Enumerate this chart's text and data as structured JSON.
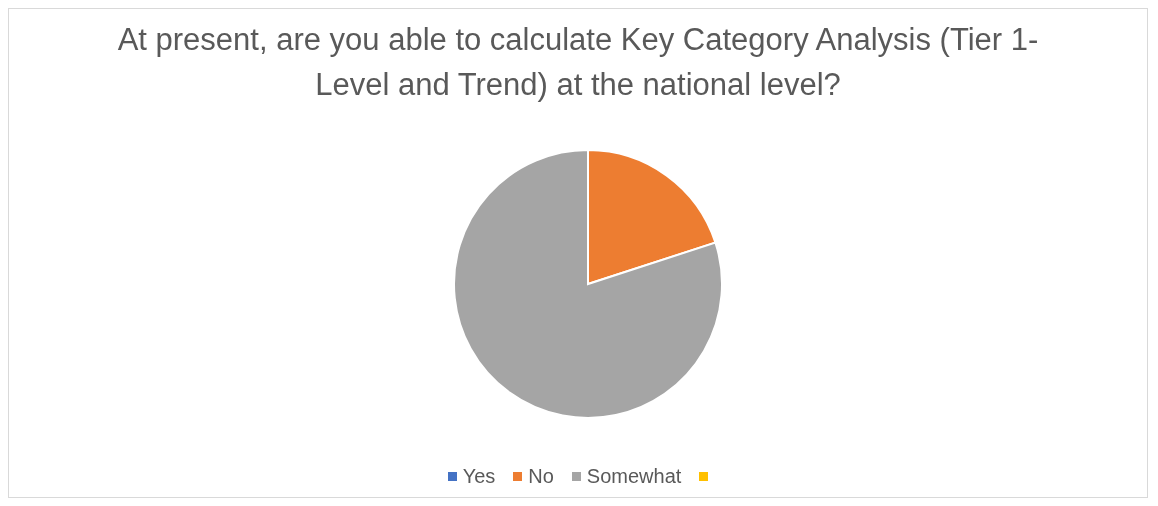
{
  "chart_data": {
    "type": "pie",
    "title": "At present, are you able to calculate Key Category Analysis (Tier 1- Level and Trend) at the national level?",
    "categories": [
      "Yes",
      "No",
      "Somewhat",
      null
    ],
    "values": [
      0,
      20,
      80,
      0
    ],
    "colors": [
      "#4472c4",
      "#ed7d31",
      "#a5a5a5",
      "#ffc000"
    ],
    "legend": "bottom"
  }
}
